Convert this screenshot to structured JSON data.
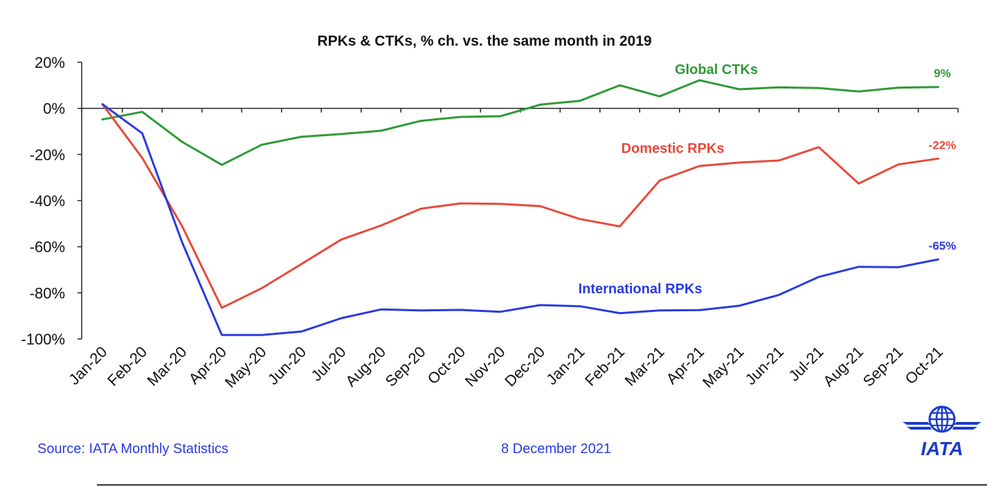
{
  "footer": {
    "source": "Source: IATA Monthly Statistics",
    "date": "8 December 2021"
  },
  "logo": {
    "text": "IATA",
    "color": "#1a3cc8"
  },
  "chart_data": {
    "type": "line",
    "title": "RPKs & CTKs, % ch. vs. the same month in 2019",
    "xlabel": "",
    "ylabel": "",
    "categories": [
      "Jan-20",
      "Feb-20",
      "Mar-20",
      "Apr-20",
      "May-20",
      "Jun-20",
      "Jul-20",
      "Aug-20",
      "Sep-20",
      "Oct-20",
      "Nov-20",
      "Dec-20",
      "Jan-21",
      "Feb-21",
      "Mar-21",
      "Apr-21",
      "May-21",
      "Jun-21",
      "Jul-21",
      "Aug-21",
      "Sep-21",
      "Oct-21"
    ],
    "ylim": [
      -100,
      20
    ],
    "yticks": [
      20,
      0,
      -20,
      -40,
      -60,
      -80,
      -100
    ],
    "ytick_labels": [
      "20%",
      "0%",
      "-20%",
      "-40%",
      "-60%",
      "-80%",
      "-100%"
    ],
    "grid": false,
    "series": [
      {
        "name": "Global CTKs",
        "color": "#2e9a35",
        "end_label": "9%",
        "values": [
          -4.8,
          -1.5,
          -14.5,
          -24.5,
          -15.8,
          -12.3,
          -11.1,
          -9.7,
          -5.4,
          -3.7,
          -3.4,
          1.6,
          3.3,
          10.0,
          5.2,
          12.2,
          8.3,
          9.1,
          8.8,
          7.3,
          9.0,
          9.3
        ]
      },
      {
        "name": "Domestic RPKs",
        "color": "#e8493a",
        "end_label": "-22%",
        "values": [
          1.8,
          -21.5,
          -51.0,
          -86.5,
          -78.0,
          -67.5,
          -56.9,
          -50.8,
          -43.5,
          -41.2,
          -41.4,
          -42.4,
          -48.0,
          -51.2,
          -31.3,
          -25.0,
          -23.5,
          -22.6,
          -16.8,
          -32.6,
          -24.3,
          -21.8
        ]
      },
      {
        "name": "International RPKs",
        "color": "#2a3be0",
        "end_label": "-65%",
        "values": [
          1.8,
          -10.8,
          -58.0,
          -98.3,
          -98.3,
          -96.8,
          -91.0,
          -87.2,
          -87.6,
          -87.4,
          -88.2,
          -85.3,
          -85.8,
          -88.8,
          -87.6,
          -87.5,
          -85.6,
          -80.9,
          -73.1,
          -68.7,
          -68.9,
          -65.5
        ]
      }
    ]
  }
}
